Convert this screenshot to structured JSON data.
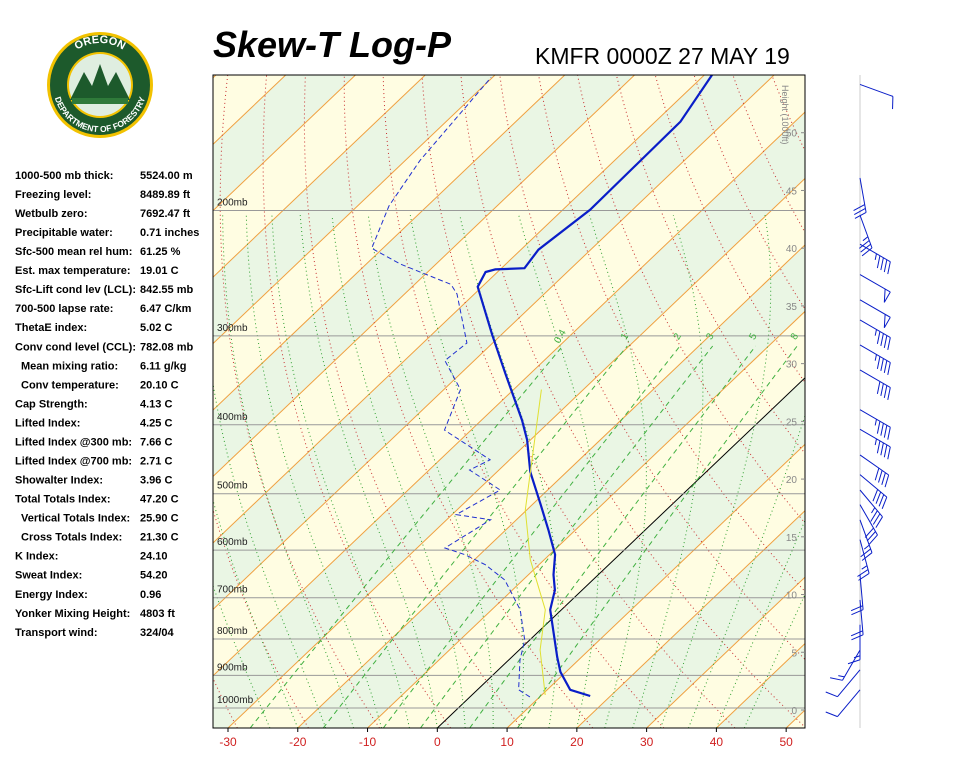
{
  "logo": {
    "top": "OREGON",
    "bottom": "DEPARTMENT OF FORESTRY"
  },
  "stats": [
    [
      "1000-500 mb thick:",
      "5524.00 m"
    ],
    [
      "Freezing level:",
      "8489.89 ft"
    ],
    [
      "Wetbulb zero:",
      "7692.47 ft"
    ],
    [
      "Precipitable water:",
      "0.71 inches"
    ],
    [
      "Sfc-500 mean rel hum:",
      "61.25 %"
    ],
    [
      "Est. max temperature:",
      "19.01 C"
    ],
    [
      "Sfc-Lift cond lev (LCL):",
      "842.55 mb"
    ],
    [
      "700-500 lapse rate:",
      "6.47 C/km"
    ],
    [
      "ThetaE index:",
      "5.02 C"
    ],
    [
      "Conv cond level (CCL):",
      "782.08 mb"
    ],
    [
      "Mean mixing ratio:",
      "6.11 g/kg"
    ],
    [
      "Conv temperature:",
      "20.10 C"
    ],
    [
      "Cap Strength:",
      "4.13 C"
    ],
    [
      "Lifted Index:",
      "4.25 C"
    ],
    [
      "Lifted Index @300 mb:",
      "7.66 C"
    ],
    [
      "Lifted Index @700 mb:",
      "2.71 C"
    ],
    [
      "Showalter Index:",
      "3.96 C"
    ],
    [
      "Total Totals Index:",
      "47.20 C"
    ],
    [
      "Vertical Totals Index:",
      "25.90 C"
    ],
    [
      "Cross Totals Index:",
      "21.30 C"
    ],
    [
      "K Index:",
      "24.10"
    ],
    [
      "Sweat Index:",
      "54.20"
    ],
    [
      "Energy Index:",
      "0.96"
    ],
    [
      "Yonker Mixing Height:",
      "4803 ft"
    ],
    [
      "Transport wind:",
      "324/04"
    ]
  ],
  "chart_data": {
    "type": "skewt",
    "title": "Skew-T Log-P",
    "subtitle": "KMFR 0000Z 27 MAY 19",
    "xlim": [
      -32.15,
      52.7
    ],
    "xticks": [
      -30,
      -20,
      -10,
      0,
      10,
      20,
      30,
      40,
      50
    ],
    "ylim": [
      1067,
      129
    ],
    "yscale": "log",
    "yticks": [
      {
        "value": 1000,
        "label": "1000mb"
      },
      {
        "value": 900,
        "label": "900mb"
      },
      {
        "value": 800,
        "label": "800mb"
      },
      {
        "value": 700,
        "label": "700mb"
      },
      {
        "value": 600,
        "label": "600mb"
      },
      {
        "value": 500,
        "label": "500mb"
      },
      {
        "value": 400,
        "label": "400mb"
      },
      {
        "value": 300,
        "label": "300mb"
      },
      {
        "value": 200,
        "label": "200mb"
      }
    ],
    "y2label": "Height (1000ft)",
    "y2lim": [
      -1.56,
      55.0
    ],
    "y2ticks": [
      0,
      5,
      10,
      15,
      20,
      25,
      30,
      35,
      40,
      45,
      50
    ],
    "mixing_ratios": [
      0.4,
      1,
      2,
      3,
      5,
      8
    ],
    "series": [
      {
        "color": "#0a1ec8",
        "style": "solid",
        "width": 2.2,
        "pressure": [
          962,
          943,
          890,
          848,
          728,
          683,
          650,
          609,
          562,
          518,
          466,
          420,
          394,
          340,
          299,
          256,
          244,
          242,
          241,
          227,
          199.5,
          150,
          129
        ],
        "values": [
          17.1,
          13.3,
          9.2,
          6.5,
          -1.6,
          -3.9,
          -6.4,
          -9.2,
          -13.9,
          -18.8,
          -25.2,
          -30.5,
          -34.2,
          -43.4,
          -51.3,
          -60.6,
          -61.7,
          -60.7,
          -56.7,
          -57.5,
          -56.1,
          -56.4,
          -58.9
        ]
      },
      {
        "color": "#2030d0",
        "style": "dashed",
        "width": 1,
        "pressure": [
          965,
          943,
          856,
          803,
          728,
          661,
          629,
          609,
          596,
          544,
          535,
          494,
          463,
          448,
          407,
          357,
          325,
          307,
          262,
          254,
          238,
          226,
          197,
          170,
          130
        ],
        "values": [
          8.6,
          5.9,
          1.6,
          -0.7,
          -5.9,
          -12.6,
          -17.7,
          -22.1,
          -26.0,
          -23.7,
          -29.4,
          -26.8,
          -34.2,
          -32.8,
          -43.8,
          -47.6,
          -54.2,
          -53.7,
          -62.5,
          -64.8,
          -75,
          -81.6,
          -85.5,
          -87.9,
          -90.2
        ]
      },
      {
        "color": "#e0e030",
        "style": "solid",
        "width": 1,
        "pressure": [
          959,
          829,
          728,
          619,
          527,
          357
        ],
        "values": [
          10.5,
          3.0,
          -2.3,
          -12,
          -20.2,
          -36
        ]
      }
    ],
    "wind": {
      "color": "#0a1ec8",
      "pressure": [
        133,
        180,
        203,
        223,
        246,
        267,
        285,
        309,
        335,
        381,
        406,
        441,
        470,
        494,
        518,
        544,
        580,
        650,
        705,
        764,
        829,
        884,
        943
      ],
      "direction": [
        290,
        350,
        340,
        300,
        300,
        300,
        300,
        300,
        300,
        300,
        300,
        305,
        310,
        320,
        330,
        340,
        345,
        355,
        355,
        360,
        30,
        40,
        40
      ],
      "speed": [
        10,
        30,
        35,
        45,
        50,
        50,
        45,
        45,
        40,
        45,
        45,
        40,
        40,
        35,
        30,
        25,
        25,
        20,
        20,
        15,
        15,
        10,
        10
      ]
    }
  }
}
